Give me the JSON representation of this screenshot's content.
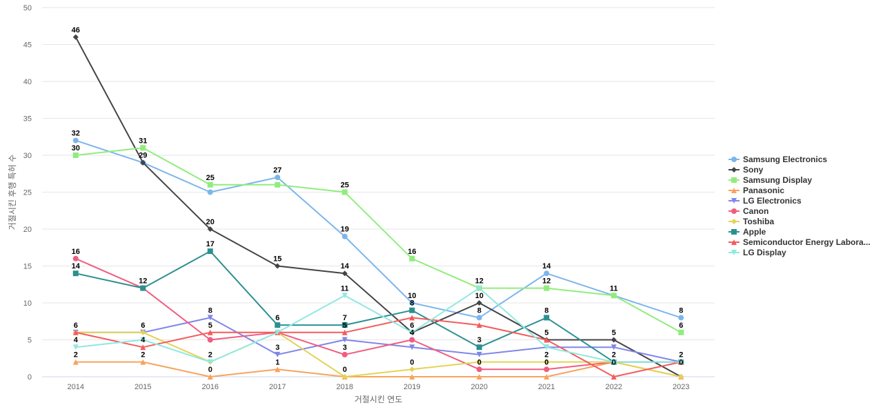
{
  "chart_data": {
    "type": "line",
    "xlabel": "거절시킨 연도",
    "ylabel": "거절시킨 후행 특허 수",
    "ylim": [
      0,
      50
    ],
    "yticks": [
      0,
      5,
      10,
      15,
      20,
      25,
      30,
      35,
      40,
      45,
      50
    ],
    "x": [
      "2014",
      "2015",
      "2016",
      "2017",
      "2018",
      "2019",
      "2020",
      "2021",
      "2022",
      "2023"
    ],
    "grid": true,
    "legend_position": "right",
    "series": [
      {
        "name": "Samsung Electronics",
        "color": "#7cb5ec",
        "marker": "circle",
        "values": [
          32,
          29,
          25,
          27,
          19,
          10,
          8,
          14,
          11,
          8
        ]
      },
      {
        "name": "Sony",
        "color": "#434348",
        "marker": "diamond",
        "values": [
          46,
          29,
          20,
          15,
          14,
          6,
          10,
          5,
          5,
          0
        ]
      },
      {
        "name": "Samsung Display",
        "color": "#90ed7d",
        "marker": "square",
        "values": [
          30,
          31,
          26,
          26,
          25,
          16,
          12,
          12,
          11,
          6
        ]
      },
      {
        "name": "Panasonic",
        "color": "#f7a35c",
        "marker": "triangle",
        "values": [
          2,
          2,
          0,
          1,
          0,
          0,
          0,
          0,
          2,
          0
        ]
      },
      {
        "name": "LG Electronics",
        "color": "#8085e9",
        "marker": "triangle-down",
        "values": [
          6,
          6,
          8,
          3,
          5,
          4,
          3,
          4,
          4,
          2
        ]
      },
      {
        "name": "Canon",
        "color": "#f15c80",
        "marker": "circle",
        "values": [
          16,
          12,
          5,
          6,
          3,
          5,
          1,
          1,
          2,
          2
        ]
      },
      {
        "name": "Toshiba",
        "color": "#e4d354",
        "marker": "diamond",
        "values": [
          6,
          6,
          2,
          6,
          0,
          1,
          2,
          2,
          2,
          0
        ]
      },
      {
        "name": "Apple",
        "color": "#2b908f",
        "marker": "square",
        "values": [
          14,
          12,
          17,
          7,
          7,
          9,
          4,
          8,
          2,
          2
        ]
      },
      {
        "name": "Semiconductor Energy Labora...",
        "color": "#f45b5b",
        "marker": "triangle",
        "values": [
          6,
          4,
          6,
          6,
          6,
          8,
          7,
          5,
          0,
          2
        ]
      },
      {
        "name": "LG Display",
        "color": "#91e8e1",
        "marker": "triangle-down",
        "values": [
          4,
          5,
          2,
          6,
          11,
          6,
          12,
          4,
          2,
          2
        ]
      }
    ],
    "data_labels": [
      {
        "x": "2014",
        "text": "46",
        "value": 46
      },
      {
        "x": "2014",
        "text": "32",
        "value": 32
      },
      {
        "x": "2014",
        "text": "30",
        "value": 30
      },
      {
        "x": "2014",
        "text": "16",
        "value": 16
      },
      {
        "x": "2014",
        "text": "14",
        "value": 14
      },
      {
        "x": "2014",
        "text": "6",
        "value": 6
      },
      {
        "x": "2014",
        "text": "4",
        "value": 4
      },
      {
        "x": "2014",
        "text": "2",
        "value": 2
      },
      {
        "x": "2015",
        "text": "31",
        "value": 31
      },
      {
        "x": "2015",
        "text": "29",
        "value": 29
      },
      {
        "x": "2015",
        "text": "12",
        "value": 12
      },
      {
        "x": "2015",
        "text": "6",
        "value": 6
      },
      {
        "x": "2015",
        "text": "4",
        "value": 4
      },
      {
        "x": "2015",
        "text": "2",
        "value": 2
      },
      {
        "x": "2016",
        "text": "25",
        "value": 26
      },
      {
        "x": "2016",
        "text": "20",
        "value": 20
      },
      {
        "x": "2016",
        "text": "17",
        "value": 17
      },
      {
        "x": "2016",
        "text": "8",
        "value": 8
      },
      {
        "x": "2016",
        "text": "5",
        "value": 6
      },
      {
        "x": "2016",
        "text": "2",
        "value": 2
      },
      {
        "x": "2016",
        "text": "0",
        "value": 0
      },
      {
        "x": "2017",
        "text": "27",
        "value": 27
      },
      {
        "x": "2017",
        "text": "15",
        "value": 15
      },
      {
        "x": "2017",
        "text": "6",
        "value": 7
      },
      {
        "x": "2017",
        "text": "3",
        "value": 3
      },
      {
        "x": "2017",
        "text": "1",
        "value": 1
      },
      {
        "x": "2018",
        "text": "25",
        "value": 25
      },
      {
        "x": "2018",
        "text": "19",
        "value": 19
      },
      {
        "x": "2018",
        "text": "14",
        "value": 14
      },
      {
        "x": "2018",
        "text": "11",
        "value": 11
      },
      {
        "x": "2018",
        "text": "7",
        "value": 7
      },
      {
        "x": "2018",
        "text": "5",
        "value": 6
      },
      {
        "x": "2018",
        "text": "3",
        "value": 3
      },
      {
        "x": "2018",
        "text": "0",
        "value": 0
      },
      {
        "x": "2019",
        "text": "16",
        "value": 16
      },
      {
        "x": "2019",
        "text": "10",
        "value": 10
      },
      {
        "x": "2019",
        "text": "8",
        "value": 9
      },
      {
        "x": "2019",
        "text": "6",
        "value": 6
      },
      {
        "x": "2019",
        "text": "4",
        "value": 5
      },
      {
        "x": "2019",
        "text": "0",
        "value": 1
      },
      {
        "x": "2020",
        "text": "12",
        "value": 12
      },
      {
        "x": "2020",
        "text": "10",
        "value": 10
      },
      {
        "x": "2020",
        "text": "8",
        "value": 8
      },
      {
        "x": "2020",
        "text": "3",
        "value": 4
      },
      {
        "x": "2020",
        "text": "0",
        "value": 1
      },
      {
        "x": "2021",
        "text": "14",
        "value": 14
      },
      {
        "x": "2021",
        "text": "12",
        "value": 12
      },
      {
        "x": "2021",
        "text": "8",
        "value": 8
      },
      {
        "x": "2021",
        "text": "5",
        "value": 5
      },
      {
        "x": "2021",
        "text": "2",
        "value": 2
      },
      {
        "x": "2021",
        "text": "0",
        "value": 1
      },
      {
        "x": "2022",
        "text": "11",
        "value": 11
      },
      {
        "x": "2022",
        "text": "5",
        "value": 5
      },
      {
        "x": "2022",
        "text": "2",
        "value": 2
      },
      {
        "x": "2022",
        "text": "0",
        "value": 1
      },
      {
        "x": "2023",
        "text": "8",
        "value": 8
      },
      {
        "x": "2023",
        "text": "6",
        "value": 6
      },
      {
        "x": "2023",
        "text": "2",
        "value": 2
      },
      {
        "x": "2023",
        "text": "0",
        "value": 1
      }
    ]
  }
}
